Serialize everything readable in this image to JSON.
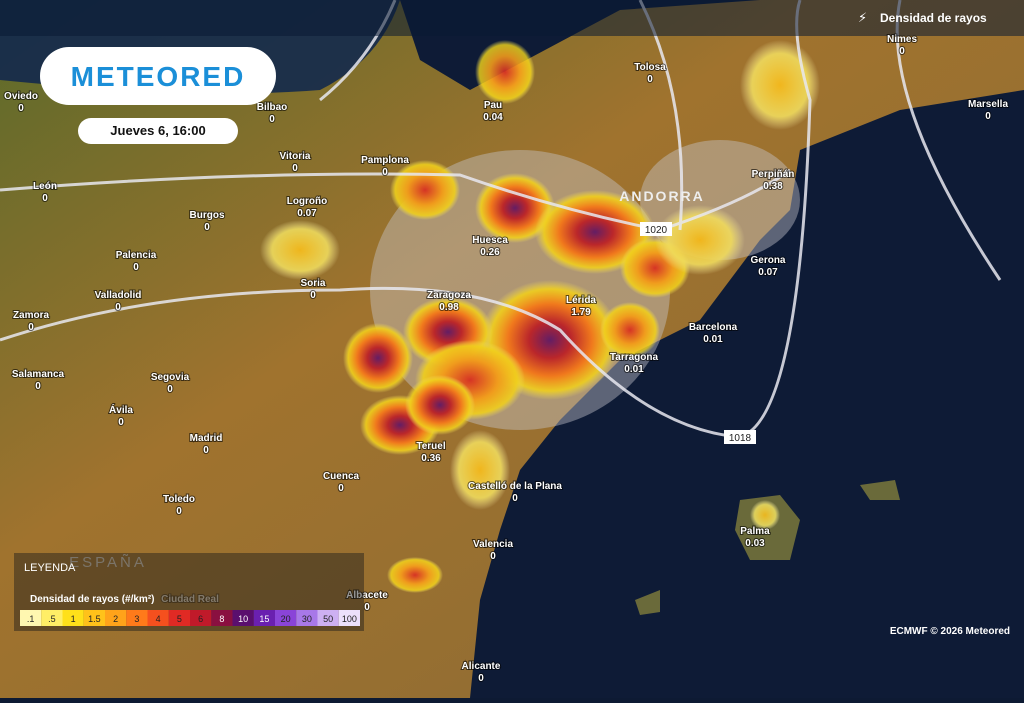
{
  "header": {
    "layer": "Densidad de rayos",
    "logo": "METEORED",
    "datetime": "Jueves 6, 16:00"
  },
  "region_label": "ESPAÑA",
  "cities": [
    {
      "name": "Oviedo",
      "value": 0
    },
    {
      "name": "Bilbao",
      "value": 0
    },
    {
      "name": "Pau",
      "value": 0.04
    },
    {
      "name": "Tolosa",
      "value": 0
    },
    {
      "name": "Nimes",
      "value": 0
    },
    {
      "name": "Marsella",
      "value": 0
    },
    {
      "name": "Vitoria",
      "value": 0
    },
    {
      "name": "Pamplona",
      "value": 0
    },
    {
      "name": "León",
      "value": 0
    },
    {
      "name": "Logroño",
      "value": 0.07
    },
    {
      "name": "Burgos",
      "value": 0
    },
    {
      "name": "Perpiñán",
      "value": 0.38
    },
    {
      "name": "Huesca",
      "value": 0.26
    },
    {
      "name": "Palencia",
      "value": 0
    },
    {
      "name": "Gerona",
      "value": 0.07
    },
    {
      "name": "Soria",
      "value": 0
    },
    {
      "name": "Valladolid",
      "value": 0
    },
    {
      "name": "Zaragoza",
      "value": 0.98
    },
    {
      "name": "Lérida",
      "value": 1.79
    },
    {
      "name": "Barcelona",
      "value": 0.01
    },
    {
      "name": "Zamora",
      "value": 0
    },
    {
      "name": "Tarragona",
      "value": 0.01
    },
    {
      "name": "Salamanca",
      "value": 0
    },
    {
      "name": "Segovia",
      "value": 0
    },
    {
      "name": "Ávila",
      "value": 0
    },
    {
      "name": "Madrid",
      "value": 0
    },
    {
      "name": "Teruel",
      "value": 0.36
    },
    {
      "name": "Cuenca",
      "value": 0
    },
    {
      "name": "Castelló de la Plana",
      "value": 0
    },
    {
      "name": "Toledo",
      "value": 0
    },
    {
      "name": "Valencia",
      "value": 0
    },
    {
      "name": "Palma",
      "value": 0.03
    },
    {
      "name": "Albacete",
      "value": 0
    },
    {
      "name": "Alicante",
      "value": 0
    }
  ],
  "places": [
    "ANDORRA",
    "Ciudad Real"
  ],
  "isobars": [
    "1020",
    "1018"
  ],
  "legend": {
    "title": "LEYENDA",
    "subtitle": "Densidad de rayos (#/km²)",
    "scale": [
      {
        "label": ".1",
        "color": "#fff7b0"
      },
      {
        "label": ".5",
        "color": "#ffee66"
      },
      {
        "label": "1",
        "color": "#ffe01a"
      },
      {
        "label": "1.5",
        "color": "#ffc21a"
      },
      {
        "label": "2",
        "color": "#ffa31a"
      },
      {
        "label": "3",
        "color": "#ff7a1a"
      },
      {
        "label": "4",
        "color": "#f5501e"
      },
      {
        "label": "5",
        "color": "#e02a24"
      },
      {
        "label": "6",
        "color": "#c01a2a"
      },
      {
        "label": "8",
        "color": "#8a1040"
      },
      {
        "label": "10",
        "color": "#5a0f6e"
      },
      {
        "label": "15",
        "color": "#6a20b0"
      },
      {
        "label": "20",
        "color": "#8a44d8"
      },
      {
        "label": "30",
        "color": "#a878e8"
      },
      {
        "label": "50",
        "color": "#cdb0f2"
      },
      {
        "label": "100",
        "color": "#ece0fb"
      }
    ]
  },
  "credit": "ECMWF © 2026 Meteored"
}
